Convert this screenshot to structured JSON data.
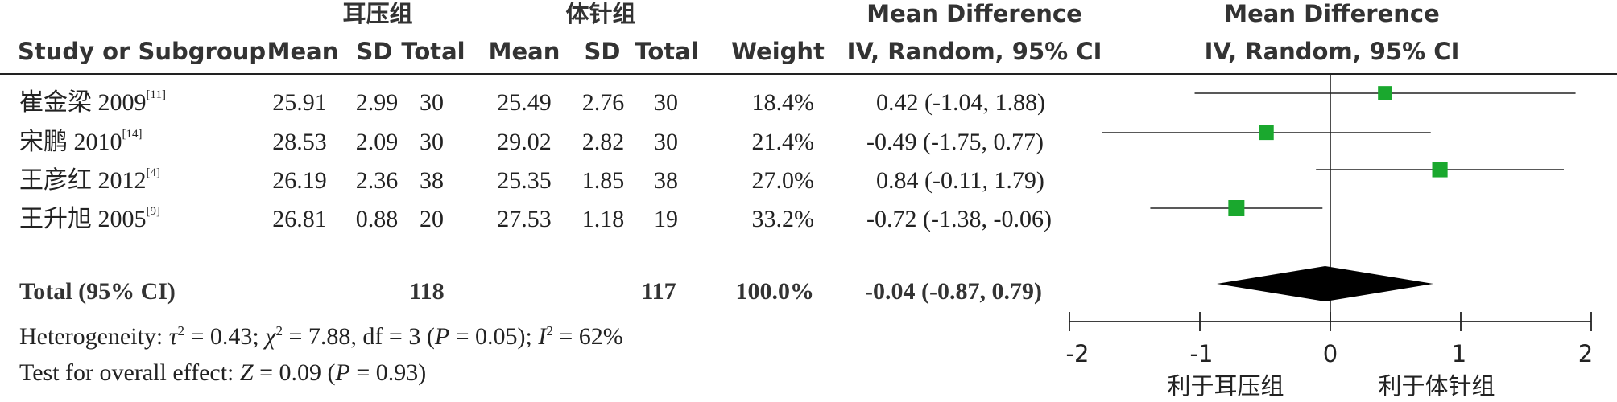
{
  "headers": {
    "group1": "耳压组",
    "group2": "体针组",
    "study": "Study or Subgroup",
    "mean1": "Mean",
    "sd1": "SD",
    "total1": "Total",
    "mean2": "Mean",
    "sd2": "SD",
    "total2": "Total",
    "weight": "Weight",
    "md_title": "Mean Difference",
    "md_method": "IV, Random, 95% CI",
    "plot_title": "Mean Difference",
    "plot_method": "IV, Random, 95% CI"
  },
  "studies": [
    {
      "name": "崔金梁 2009",
      "ref": "[11]",
      "mean1": "25.91",
      "sd1": "2.99",
      "n1": "30",
      "mean2": "25.49",
      "sd2": "2.76",
      "n2": "30",
      "weight": "18.4%",
      "ci_text": "0.42 (-1.04, 1.88)"
    },
    {
      "name": "宋鹏 2010",
      "ref": "[14]",
      "mean1": "28.53",
      "sd1": "2.09",
      "n1": "30",
      "mean2": "29.02",
      "sd2": "2.82",
      "n2": "30",
      "weight": "21.4%",
      "ci_text": "-0.49 (-1.75, 0.77)"
    },
    {
      "name": "王彦红 2012",
      "ref": "[4]",
      "mean1": "26.19",
      "sd1": "2.36",
      "n1": "38",
      "mean2": "25.35",
      "sd2": "1.85",
      "n2": "38",
      "weight": "27.0%",
      "ci_text": "0.84 (-0.11, 1.79)"
    },
    {
      "name": "王升旭 2005",
      "ref": "[9]",
      "mean1": "26.81",
      "sd1": "0.88",
      "n1": "20",
      "mean2": "27.53",
      "sd2": "1.18",
      "n2": "19",
      "weight": "33.2%",
      "ci_text": "-0.72 (-1.38, -0.06)"
    }
  ],
  "total": {
    "label": "Total (95% CI)",
    "n1": "118",
    "n2": "117",
    "weight": "100.0%",
    "ci_text": "-0.04 (-0.87, 0.79)"
  },
  "heterogeneity": {
    "prefix": "Heterogeneity: ",
    "tau": "τ",
    "tau_val": " = 0.43; ",
    "chi": "χ",
    "chi_val": " = 7.88, df = 3 (",
    "p": "P",
    "p_val": " = 0.05); ",
    "i": "I",
    "i_val": " = 62%",
    "sq": "2"
  },
  "overall": {
    "prefix": "Test for overall effect: ",
    "z": "Z",
    "z_val": " = 0.09 (",
    "p": "P",
    "p_val": " = 0.93)"
  },
  "favours": {
    "left": "利于耳压组",
    "right": "利于体针组"
  },
  "colors": {
    "marker": "#1aa82e",
    "diamond": "#000000",
    "text": "#222222"
  },
  "chart_data": {
    "type": "forest",
    "xlim": [
      -2,
      2
    ],
    "x_ticks": [
      -2,
      -1,
      0,
      1,
      2
    ],
    "x_tick_labels": [
      "-2",
      "-1",
      "0",
      "1",
      "2"
    ],
    "studies": [
      {
        "name": "崔金梁 2009",
        "md": 0.42,
        "lo": -1.04,
        "hi": 1.88,
        "weight": 18.4
      },
      {
        "name": "宋鹏 2010",
        "md": -0.49,
        "lo": -1.75,
        "hi": 0.77,
        "weight": 21.4
      },
      {
        "name": "王彦红 2012",
        "md": 0.84,
        "lo": -0.11,
        "hi": 1.79,
        "weight": 27.0
      },
      {
        "name": "王升旭 2005",
        "md": -0.72,
        "lo": -1.38,
        "hi": -0.06,
        "weight": 33.2
      }
    ],
    "overall": {
      "md": -0.04,
      "lo": -0.87,
      "hi": 0.79
    }
  }
}
